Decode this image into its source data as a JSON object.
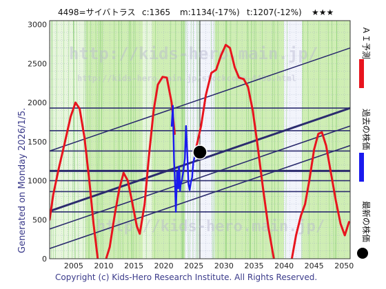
{
  "header": {
    "code_name": "4498=サイバトラス",
    "close": "c:1365",
    "m": "m:1134(-17%)",
    "t": "t:1207(-12%)",
    "stars": "★★★"
  },
  "side_text": "Generated on Monday 2026/1/5.",
  "copyright": "Copyright (c) Kids-Hero Research Institute. All Rights Reserved.",
  "watermarks": {
    "main": "http://kids-hero.main.jp/",
    "sub": "http://kids-hero.main.jp/stockcode-4498.html",
    "bottom": "http://kids-hero.main.jp/"
  },
  "legend": {
    "ai": "ＡＩ予測",
    "past": "過去の株価",
    "latest": "最新の株価"
  },
  "colors": {
    "ai": "#e8141e",
    "past": "#1a1aee",
    "latest": "#000000",
    "trend": "#2b2b6e",
    "bg_green": "#cfeeb4",
    "bg_light": "#e7f6dc",
    "bg_white": "#f2f4fb"
  },
  "chart_data": {
    "type": "line",
    "title": "",
    "xlabel": "",
    "ylabel": "",
    "xlim": [
      2001,
      2051
    ],
    "ylim": [
      0,
      3050
    ],
    "x_ticks": [
      2005,
      2010,
      2015,
      2020,
      2025,
      2030,
      2035,
      2040,
      2045,
      2050
    ],
    "y_ticks": [
      0,
      500,
      1000,
      1500,
      2000,
      2500,
      3000
    ],
    "grid": true,
    "current_marker": {
      "x": 2026.0,
      "y": 1365
    },
    "series": [
      {
        "name": "ＡＩ予測",
        "kind": "ai",
        "segments": [
          [
            [
              2001.0,
              500
            ],
            [
              2001.6,
              820
            ],
            [
              2002.5,
              1150
            ],
            [
              2003.5,
              1480
            ],
            [
              2004.5,
              1820
            ],
            [
              2005.3,
              2000
            ],
            [
              2006.0,
              1920
            ],
            [
              2006.8,
              1550
            ],
            [
              2007.6,
              1000
            ],
            [
              2008.3,
              450
            ],
            [
              2009.0,
              0
            ]
          ],
          [
            [
              2010.4,
              0
            ],
            [
              2011.0,
              150
            ],
            [
              2011.8,
              550
            ],
            [
              2012.6,
              900
            ],
            [
              2013.3,
              1100
            ],
            [
              2014.0,
              1000
            ],
            [
              2014.8,
              700
            ],
            [
              2015.5,
              420
            ],
            [
              2016.0,
              320
            ],
            [
              2016.8,
              700
            ],
            [
              2017.5,
              1300
            ],
            [
              2018.3,
              1900
            ],
            [
              2019.0,
              2230
            ],
            [
              2019.8,
              2330
            ],
            [
              2020.5,
              2320
            ],
            [
              2021.3,
              2000
            ],
            [
              2021.8,
              1600
            ]
          ],
          [
            [
              2025.4,
              1430
            ],
            [
              2026.2,
              1700
            ],
            [
              2027.0,
              2100
            ],
            [
              2027.9,
              2380
            ],
            [
              2028.7,
              2420
            ],
            [
              2029.5,
              2600
            ],
            [
              2030.3,
              2740
            ],
            [
              2031.0,
              2700
            ],
            [
              2031.8,
              2450
            ],
            [
              2032.5,
              2320
            ],
            [
              2033.3,
              2300
            ],
            [
              2034.0,
              2200
            ],
            [
              2034.8,
              1900
            ],
            [
              2035.6,
              1450
            ],
            [
              2036.5,
              900
            ],
            [
              2037.4,
              400
            ],
            [
              2038.3,
              0
            ]
          ],
          [
            [
              2041.3,
              0
            ],
            [
              2042.0,
              300
            ],
            [
              2042.8,
              550
            ],
            [
              2043.5,
              700
            ],
            [
              2044.2,
              1000
            ],
            [
              2045.0,
              1400
            ],
            [
              2045.7,
              1600
            ],
            [
              2046.3,
              1620
            ],
            [
              2047.0,
              1450
            ],
            [
              2047.8,
              1100
            ],
            [
              2048.6,
              750
            ],
            [
              2049.4,
              450
            ],
            [
              2050.1,
              300
            ],
            [
              2050.8,
              470
            ]
          ]
        ]
      },
      {
        "name": "過去の株価",
        "kind": "past",
        "segments": [
          [
            [
              2021.3,
              1700
            ],
            [
              2021.5,
              1960
            ],
            [
              2021.7,
              1250
            ],
            [
              2021.9,
              900
            ],
            [
              2022.0,
              600
            ],
            [
              2022.1,
              840
            ],
            [
              2022.2,
              1120
            ],
            [
              2022.3,
              1050
            ],
            [
              2022.4,
              900
            ],
            [
              2022.5,
              1180
            ],
            [
              2022.6,
              1120
            ],
            [
              2022.7,
              870
            ],
            [
              2022.8,
              950
            ],
            [
              2023.0,
              1000
            ],
            [
              2023.2,
              1100
            ],
            [
              2023.5,
              1280
            ],
            [
              2023.7,
              1700
            ],
            [
              2023.9,
              1350
            ],
            [
              2024.1,
              960
            ],
            [
              2024.3,
              880
            ],
            [
              2024.5,
              980
            ],
            [
              2024.7,
              1040
            ],
            [
              2024.9,
              1230
            ],
            [
              2025.1,
              1300
            ],
            [
              2025.3,
              1380
            ],
            [
              2025.5,
              1300
            ],
            [
              2025.7,
              1280
            ],
            [
              2025.9,
              1340
            ],
            [
              2026.0,
              1365
            ]
          ]
        ]
      }
    ],
    "trend_lines": [
      {
        "kind": "horizontal",
        "y": 1930
      },
      {
        "kind": "horizontal",
        "y": 1640
      },
      {
        "kind": "horizontal",
        "y": 1380
      },
      {
        "kind": "horizontal",
        "y": 1125,
        "bold": true
      },
      {
        "kind": "horizontal",
        "y": 1000
      },
      {
        "kind": "horizontal",
        "y": 860
      },
      {
        "kind": "horizontal",
        "y": 600
      },
      {
        "kind": "sloped",
        "p1": [
          2001,
          1380
        ],
        "p2": [
          2051,
          2700
        ]
      },
      {
        "kind": "sloped",
        "p1": [
          2001,
          610
        ],
        "p2": [
          2051,
          1930
        ],
        "bold": true
      },
      {
        "kind": "sloped",
        "p1": [
          2001,
          380
        ],
        "p2": [
          2051,
          1700
        ]
      },
      {
        "kind": "sloped",
        "p1": [
          2001,
          130
        ],
        "p2": [
          2051,
          1450
        ]
      }
    ],
    "background_bands": [
      {
        "from": 2001.0,
        "to": 2007.0,
        "tone": "light"
      },
      {
        "from": 2007.0,
        "to": 2016.5,
        "tone": "green"
      },
      {
        "from": 2016.5,
        "to": 2018.0,
        "tone": "light"
      },
      {
        "from": 2018.0,
        "to": 2023.5,
        "tone": "green"
      },
      {
        "from": 2023.5,
        "to": 2028.5,
        "tone": "white"
      },
      {
        "from": 2028.5,
        "to": 2040.0,
        "tone": "green"
      },
      {
        "from": 2040.0,
        "to": 2043.0,
        "tone": "white"
      },
      {
        "from": 2043.0,
        "to": 2051.0,
        "tone": "green"
      }
    ]
  }
}
